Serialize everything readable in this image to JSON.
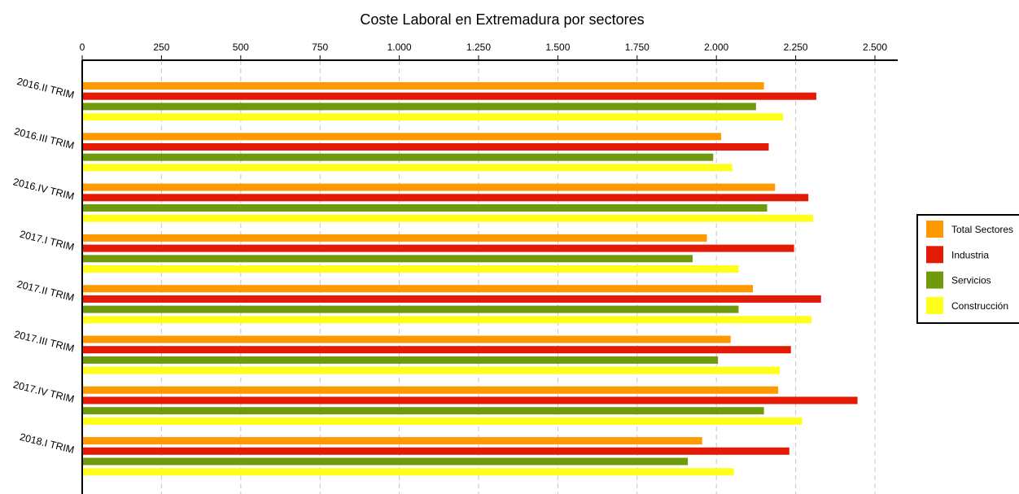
{
  "chart_data": {
    "type": "bar",
    "orientation": "horizontal",
    "title": "Coste Laboral en Extremadura por sectores",
    "xlabel": "",
    "ylabel": "",
    "xlim": [
      0,
      2500
    ],
    "x_ticks": [
      0,
      250,
      500,
      750,
      1000,
      1250,
      1500,
      1750,
      2000,
      2250,
      2500
    ],
    "x_tick_labels": [
      "0",
      "250",
      "500",
      "750",
      "1.000",
      "1.250",
      "1.500",
      "1.750",
      "2.000",
      "2.250",
      "2.500"
    ],
    "x_axis_position": "top",
    "grid": "vertical dashed",
    "legend_position": "right",
    "categories": [
      "2016.II TRIM",
      "2016.III TRIM",
      "2016.IV TRIM",
      "2017.I TRIM",
      "2017.II TRIM",
      "2017.III TRIM",
      "2017.IV TRIM",
      "2018.I TRIM"
    ],
    "series": [
      {
        "name": "Total Sectores",
        "color": "#FF9900",
        "values": [
          2150,
          2015,
          2185,
          1970,
          2115,
          2045,
          2195,
          1955
        ]
      },
      {
        "name": "Industria",
        "color": "#E31A05",
        "values": [
          2315,
          2165,
          2290,
          2245,
          2330,
          2235,
          2445,
          2230
        ]
      },
      {
        "name": "Servicios",
        "color": "#6F9A0C",
        "values": [
          2125,
          1990,
          2160,
          1925,
          2070,
          2005,
          2150,
          1910
        ]
      },
      {
        "name": "Construcción",
        "color": "#FFFF1A",
        "values": [
          2210,
          2050,
          2305,
          2070,
          2300,
          2200,
          2270,
          2055
        ]
      }
    ]
  }
}
